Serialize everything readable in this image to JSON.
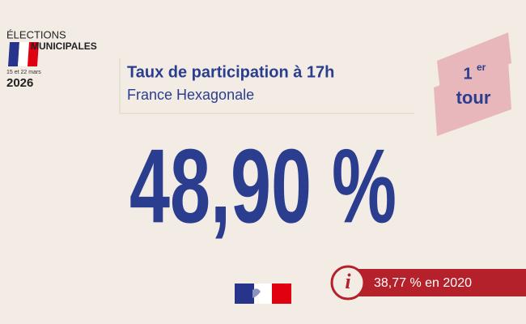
{
  "logo": {
    "line1": "ÉLECTIONS",
    "line2": "MUNICIPALES",
    "dates": "15 et 22 mars",
    "year": "2026"
  },
  "header": {
    "title": "Taux de participation à 17h",
    "subtitle": "France Hexagonale"
  },
  "badge": {
    "number": "1",
    "suffix": "er",
    "word": "tour"
  },
  "main_value": "48,90 %",
  "info": {
    "icon": "i",
    "text": "38,77 % en 2020"
  }
}
